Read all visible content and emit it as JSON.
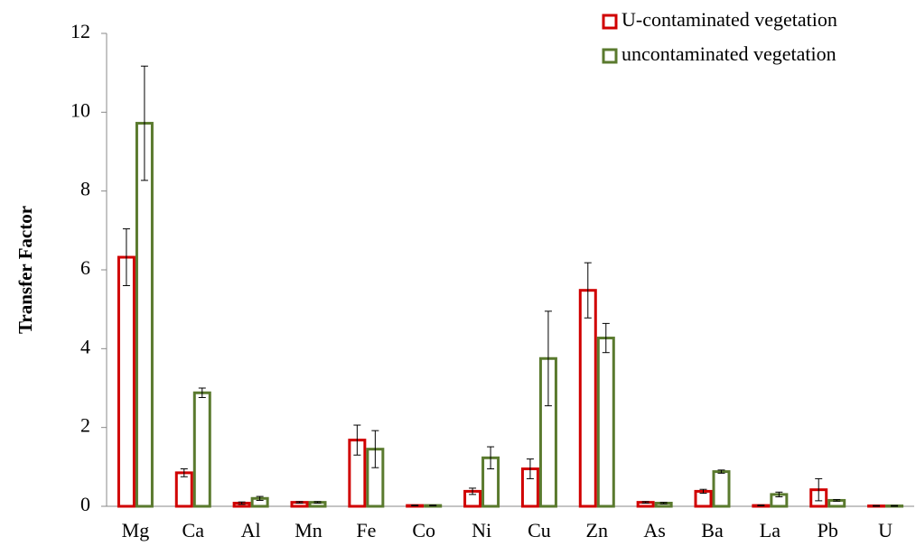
{
  "chart_data": {
    "type": "bar",
    "y_label": "Transfer Factor",
    "categories": [
      "Mg",
      "Ca",
      "Al",
      "Mn",
      "Fe",
      "Co",
      "Ni",
      "Cu",
      "Zn",
      "As",
      "Ba",
      "La",
      "Pb",
      "U"
    ],
    "series": [
      {
        "name": "U-contaminated vegetation",
        "color": "#d00000",
        "values": [
          6.32,
          0.85,
          0.08,
          0.1,
          1.68,
          0.02,
          0.38,
          0.95,
          5.48,
          0.1,
          0.38,
          0.02,
          0.42,
          0.01
        ],
        "errors": [
          0.72,
          0.1,
          0.03,
          0.02,
          0.38,
          0.01,
          0.08,
          0.25,
          0.7,
          0.02,
          0.05,
          0.01,
          0.28,
          0.01
        ]
      },
      {
        "name": "uncontaminated vegetation",
        "color": "#5a7a2e",
        "values": [
          9.72,
          2.88,
          0.2,
          0.1,
          1.45,
          0.02,
          1.23,
          3.75,
          4.27,
          0.08,
          0.88,
          0.3,
          0.15,
          0.01
        ],
        "errors": [
          1.45,
          0.12,
          0.05,
          0.02,
          0.47,
          0.01,
          0.28,
          1.2,
          0.37,
          0.02,
          0.04,
          0.06,
          0.02,
          0.01
        ]
      }
    ],
    "ylim": [
      0,
      12
    ],
    "yticks": [
      0,
      2,
      4,
      6,
      8,
      10,
      12
    ],
    "grid": false,
    "legend": "top-right"
  }
}
